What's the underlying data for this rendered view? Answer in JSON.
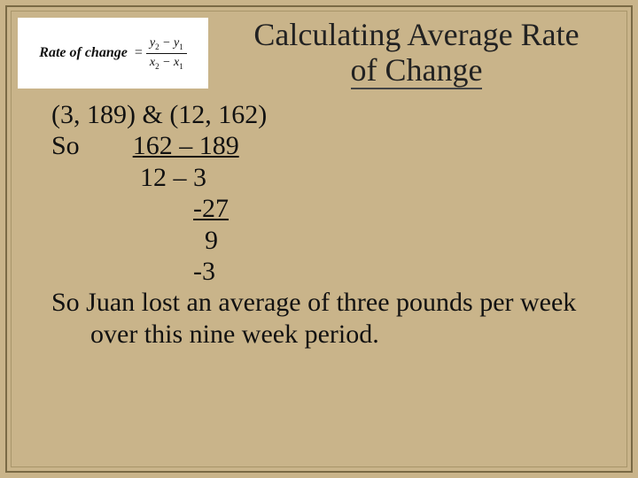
{
  "colors": {
    "background": "#c9b48a",
    "border_outer": "#7a6a45",
    "border_inner": "#a8956a",
    "text": "#111111",
    "formula_bg": "#ffffff"
  },
  "typography": {
    "title_fontsize_pt": 27,
    "body_fontsize_pt": 22,
    "formula_label_fontsize_pt": 12,
    "font_family": "Times New Roman"
  },
  "formula": {
    "label": "Rate of change",
    "equals": "=",
    "numerator": "y₂ − y₁",
    "denominator": "x₂ − x₁"
  },
  "title": {
    "line1": "Calculating Average Rate",
    "line2": "of Change"
  },
  "body": {
    "points": "(3, 189) & (12, 162)",
    "so_label": "So",
    "frac_num_1": "162 – 189",
    "frac_den_1": "12 – 3",
    "frac_num_2": "-27",
    "frac_den_2": "9",
    "result": "-3",
    "conclusion": "So Juan lost an average of three pounds per week over this nine week period."
  }
}
